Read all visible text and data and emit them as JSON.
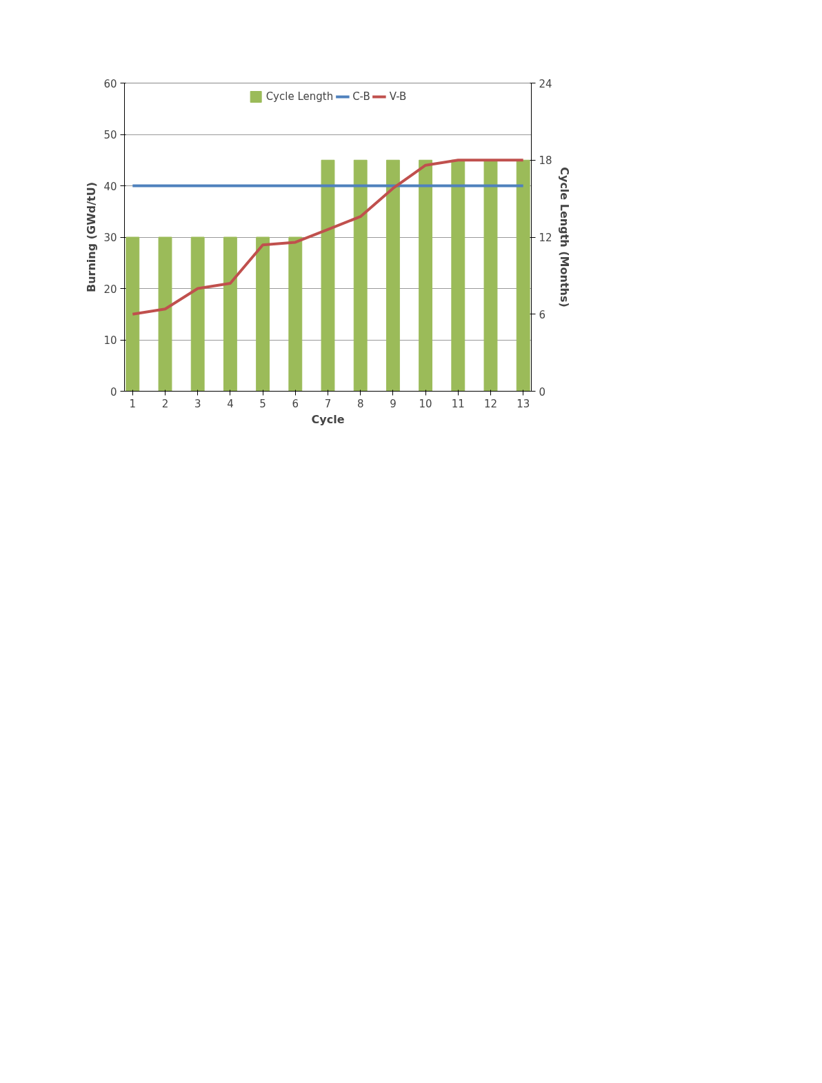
{
  "chart_data": {
    "type": "bar",
    "xlabel": "Cycle",
    "ylabel": "Burning (GWd/tU)",
    "y2label": "Cycle Length (Months)",
    "x": [
      1,
      2,
      3,
      4,
      5,
      6,
      7,
      8,
      9,
      10,
      11,
      12,
      13
    ],
    "series": [
      {
        "name": "Cycle Length",
        "axis": "y2",
        "color": "#9bbb59",
        "values": [
          12,
          12,
          12,
          12,
          12,
          12,
          18,
          18,
          18,
          18,
          18,
          18,
          18
        ]
      },
      {
        "name": "C-B",
        "type": "line",
        "color": "#4f81bd",
        "values": [
          40,
          40,
          40,
          40,
          40,
          40,
          40,
          40,
          40,
          40,
          40,
          40,
          40
        ]
      },
      {
        "name": "V-B",
        "type": "line",
        "color": "#c0504d",
        "values": [
          15,
          16,
          20,
          21,
          28.5,
          29,
          31.5,
          34,
          39.5,
          44,
          45,
          45,
          45
        ]
      }
    ],
    "xlim": [
      0.75,
      13.25
    ],
    "xticks": [
      1,
      2,
      3,
      4,
      5,
      6,
      7,
      8,
      9,
      10,
      11,
      12,
      13
    ],
    "ylim": [
      0,
      60
    ],
    "yticks": [
      0,
      10,
      20,
      30,
      40,
      50,
      60
    ],
    "y2lim": [
      0,
      24
    ],
    "y2ticks": [
      0,
      6,
      12,
      18,
      24
    ],
    "grid": "y",
    "legend": "top",
    "marker": "none",
    "line_style": "solid"
  }
}
